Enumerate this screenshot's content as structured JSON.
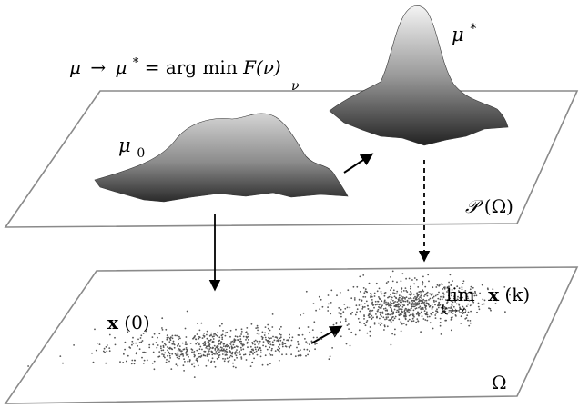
{
  "formula": {
    "mu": "μ",
    "arrow": "→",
    "mu_star": "μ",
    "star": "*",
    "equals": " = arg min ",
    "F_of_nu": "F(ν)",
    "sub_nu": "ν"
  },
  "labels": {
    "mu0_base": "μ",
    "mu0_sub": "0",
    "mustar_base": "μ",
    "mustar_sup": "*",
    "P_omega_script": "𝒫",
    "P_omega_rest": "(Ω)",
    "x0_bold": "x",
    "x0_rest": "(0)",
    "lim": "lim",
    "lim_sub": "k→∞",
    "xk_bold": "x",
    "xk_rest": "(k)",
    "omega": "Ω"
  },
  "colors": {
    "plane_stroke": "#8a8a8a",
    "surface_light": "#d6d6d6",
    "surface_dark": "#2b2b2b",
    "points": "#555555"
  }
}
